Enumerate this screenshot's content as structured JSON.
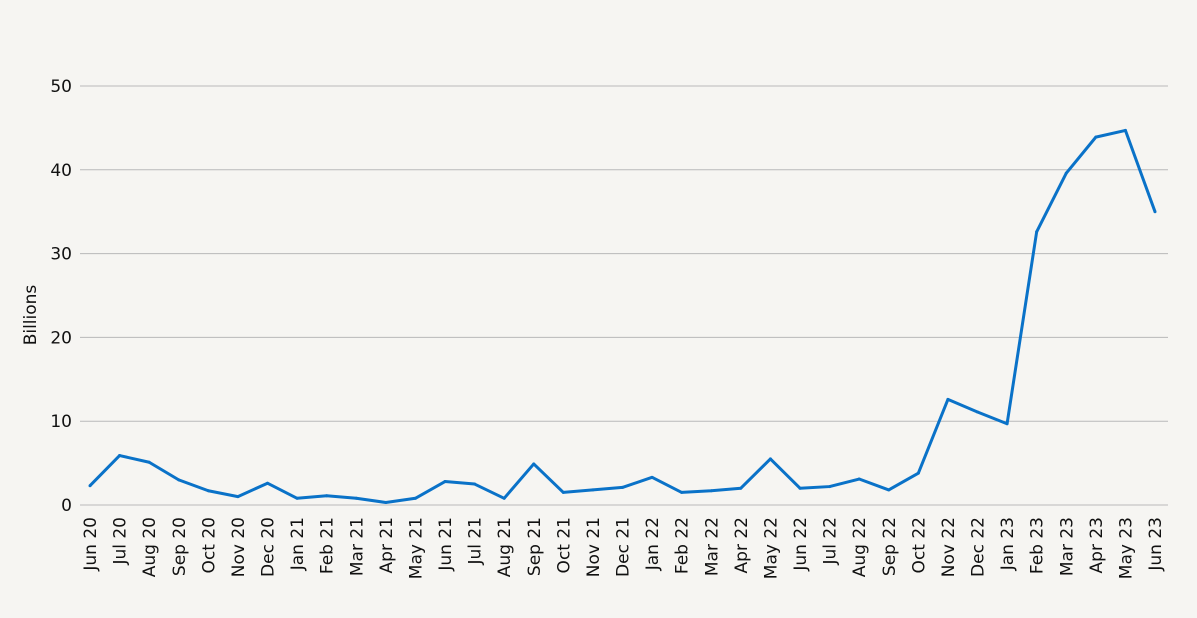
{
  "chart_data": {
    "type": "line",
    "title": "",
    "xlabel": "",
    "ylabel": "Billions",
    "ylim": [
      0,
      50
    ],
    "yticks": [
      0,
      10,
      20,
      30,
      40,
      50
    ],
    "grid": true,
    "line_color": "#0a72c8",
    "grid_color": "#b9b9b9",
    "background": "#f6f5f2",
    "categories": [
      "Jun 20",
      "Jul 20",
      "Aug 20",
      "Sep 20",
      "Oct 20",
      "Nov 20",
      "Dec 20",
      "Jan 21",
      "Feb 21",
      "Mar 21",
      "Apr 21",
      "May 21",
      "Jun 21",
      "Jul 21",
      "Aug 21",
      "Sep 21",
      "Oct 21",
      "Nov 21",
      "Dec 21",
      "Jan 22",
      "Feb 22",
      "Mar 22",
      "Apr 22",
      "May 22",
      "Jun 22",
      "Jul 22",
      "Aug 22",
      "Sep 22",
      "Oct 22",
      "Nov 22",
      "Dec 22",
      "Jan 23",
      "Feb 23",
      "Mar 23",
      "Apr 23",
      "May 23",
      "Jun 23"
    ],
    "series": [
      {
        "values": [
          2.3,
          5.9,
          5.1,
          3.0,
          1.7,
          1.0,
          2.6,
          0.8,
          1.1,
          0.8,
          0.3,
          0.8,
          2.8,
          2.5,
          0.8,
          4.9,
          1.5,
          1.8,
          2.1,
          3.3,
          1.5,
          1.7,
          2.0,
          5.5,
          2.0,
          2.2,
          3.1,
          1.8,
          3.8,
          12.6,
          11.1,
          9.7,
          32.6,
          39.6,
          43.9,
          44.7,
          35.0
        ]
      }
    ]
  }
}
